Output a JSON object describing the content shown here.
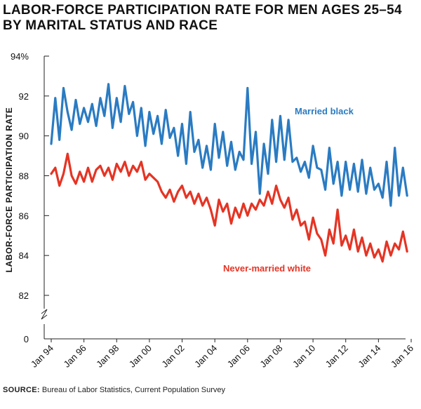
{
  "title_lines": [
    "LABOR-FORCE PARTICIPATION RATE FOR MEN AGES 25–54",
    "BY MARITAL STATUS AND RACE"
  ],
  "source": {
    "label": "SOURCE:",
    "text": "Bureau of Labor Statistics, Current Population Survey"
  },
  "colors": {
    "married_black": "#2a7bc2",
    "never_married_white": "#e53424",
    "axis": "#222222"
  },
  "chart_data": {
    "type": "line",
    "title": "LABOR-FORCE PARTICIPATION RATE FOR MEN AGES 25–54 BY MARITAL STATUS AND RACE",
    "xlabel": "",
    "ylabel": "LABOR-FORCE PARTICIPATION RATE",
    "x_range": [
      1994.0,
      2015.75
    ],
    "ylim": [
      82,
      94
    ],
    "y_ticks": [
      {
        "value": 94,
        "label": "94%"
      },
      {
        "value": 92,
        "label": "92"
      },
      {
        "value": 90,
        "label": "90"
      },
      {
        "value": 88,
        "label": "88"
      },
      {
        "value": 86,
        "label": "86"
      },
      {
        "value": 84,
        "label": "84"
      },
      {
        "value": 82,
        "label": "82"
      }
    ],
    "y_break": true,
    "y_zero_label": "0",
    "x_ticks": [
      {
        "value": 1994,
        "label": "Jan 94"
      },
      {
        "value": 1996,
        "label": "Jan 96"
      },
      {
        "value": 1998,
        "label": "Jan 98"
      },
      {
        "value": 2000,
        "label": "Jan 00"
      },
      {
        "value": 2002,
        "label": "Jan 02"
      },
      {
        "value": 2004,
        "label": "Jan 04"
      },
      {
        "value": 2006,
        "label": "Jan 06"
      },
      {
        "value": 2008,
        "label": "Jan 08"
      },
      {
        "value": 2010,
        "label": "Jan 10"
      },
      {
        "value": 2012,
        "label": "Jan 12"
      },
      {
        "value": 2014,
        "label": "Jan 14"
      },
      {
        "value": 2016,
        "label": "Jan 16"
      }
    ],
    "series": [
      {
        "name": "Married black",
        "label_text": "Married black",
        "x": [
          1994.0,
          1994.25,
          1994.5,
          1994.75,
          1995.0,
          1995.25,
          1995.5,
          1995.75,
          1996.0,
          1996.25,
          1996.5,
          1996.75,
          1997.0,
          1997.25,
          1997.5,
          1997.75,
          1998.0,
          1998.25,
          1998.5,
          1998.75,
          1999.0,
          1999.25,
          1999.5,
          1999.75,
          2000.0,
          2000.25,
          2000.5,
          2000.75,
          2001.0,
          2001.25,
          2001.5,
          2001.75,
          2002.0,
          2002.25,
          2002.5,
          2002.75,
          2003.0,
          2003.25,
          2003.5,
          2003.75,
          2004.0,
          2004.25,
          2004.5,
          2004.75,
          2005.0,
          2005.25,
          2005.5,
          2005.75,
          2006.0,
          2006.25,
          2006.5,
          2006.75,
          2007.0,
          2007.25,
          2007.5,
          2007.75,
          2008.0,
          2008.25,
          2008.5,
          2008.75,
          2009.0,
          2009.25,
          2009.5,
          2009.75,
          2010.0,
          2010.25,
          2010.5,
          2010.75,
          2011.0,
          2011.25,
          2011.5,
          2011.75,
          2012.0,
          2012.25,
          2012.5,
          2012.75,
          2013.0,
          2013.25,
          2013.5,
          2013.75,
          2014.0,
          2014.25,
          2014.5,
          2014.75,
          2015.0,
          2015.25,
          2015.5,
          2015.75
        ],
        "values": [
          89.6,
          91.9,
          89.8,
          92.4,
          91.2,
          90.3,
          91.8,
          90.6,
          91.4,
          90.7,
          91.6,
          90.5,
          91.9,
          91.0,
          92.6,
          90.4,
          91.9,
          90.7,
          92.5,
          91.1,
          91.7,
          90.0,
          91.4,
          89.5,
          91.2,
          90.1,
          91.0,
          89.6,
          91.3,
          89.9,
          90.4,
          89.0,
          90.6,
          88.6,
          91.2,
          89.2,
          89.8,
          88.4,
          89.5,
          88.3,
          90.6,
          88.9,
          90.2,
          88.5,
          89.7,
          88.3,
          89.2,
          88.8,
          92.4,
          88.6,
          90.2,
          87.1,
          89.6,
          88.1,
          90.8,
          88.7,
          91.0,
          88.8,
          90.8,
          88.7,
          88.9,
          88.2,
          88.7,
          87.9,
          89.5,
          88.4,
          88.3,
          87.3,
          89.4,
          87.6,
          88.7,
          87.0,
          88.7,
          87.3,
          88.6,
          87.2,
          88.8,
          87.1,
          88.4,
          87.3,
          87.6,
          86.9,
          88.7,
          86.5,
          89.4,
          87.0,
          88.4,
          87.0
        ]
      },
      {
        "name": "Never-married white",
        "label_text": "Never-married white",
        "x": [
          1994.0,
          1994.25,
          1994.5,
          1994.75,
          1995.0,
          1995.25,
          1995.5,
          1995.75,
          1996.0,
          1996.25,
          1996.5,
          1996.75,
          1997.0,
          1997.25,
          1997.5,
          1997.75,
          1998.0,
          1998.25,
          1998.5,
          1998.75,
          1999.0,
          1999.25,
          1999.5,
          1999.75,
          2000.0,
          2000.25,
          2000.5,
          2000.75,
          2001.0,
          2001.25,
          2001.5,
          2001.75,
          2002.0,
          2002.25,
          2002.5,
          2002.75,
          2003.0,
          2003.25,
          2003.5,
          2003.75,
          2004.0,
          2004.25,
          2004.5,
          2004.75,
          2005.0,
          2005.25,
          2005.5,
          2005.75,
          2006.0,
          2006.25,
          2006.5,
          2006.75,
          2007.0,
          2007.25,
          2007.5,
          2007.75,
          2008.0,
          2008.25,
          2008.5,
          2008.75,
          2009.0,
          2009.25,
          2009.5,
          2009.75,
          2010.0,
          2010.25,
          2010.5,
          2010.75,
          2011.0,
          2011.25,
          2011.5,
          2011.75,
          2012.0,
          2012.25,
          2012.5,
          2012.75,
          2013.0,
          2013.25,
          2013.5,
          2013.75,
          2014.0,
          2014.25,
          2014.5,
          2014.75,
          2015.0,
          2015.25,
          2015.5,
          2015.75
        ],
        "values": [
          88.1,
          88.4,
          87.5,
          88.1,
          89.1,
          88.0,
          87.6,
          88.2,
          87.7,
          88.4,
          87.7,
          88.3,
          88.5,
          88.0,
          88.4,
          87.8,
          88.6,
          88.2,
          88.7,
          88.0,
          88.5,
          88.2,
          88.7,
          87.8,
          88.1,
          87.9,
          87.7,
          87.2,
          86.9,
          87.3,
          86.7,
          87.2,
          87.5,
          86.9,
          87.2,
          86.6,
          87.1,
          86.5,
          86.9,
          86.3,
          85.5,
          86.8,
          86.2,
          86.6,
          85.6,
          86.4,
          85.9,
          86.6,
          86.0,
          86.6,
          86.3,
          86.8,
          86.5,
          87.2,
          86.6,
          87.5,
          86.8,
          86.4,
          86.9,
          85.8,
          86.3,
          85.5,
          85.7,
          84.8,
          85.9,
          85.1,
          84.8,
          84.0,
          85.3,
          84.6,
          86.3,
          84.5,
          85.0,
          84.3,
          85.3,
          84.2,
          84.9,
          84.0,
          84.6,
          83.9,
          84.3,
          83.7,
          84.7,
          84.0,
          84.6,
          84.3,
          85.2,
          84.2
        ]
      }
    ]
  }
}
